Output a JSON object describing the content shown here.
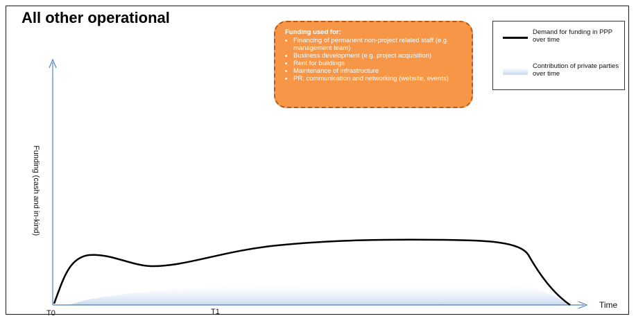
{
  "title": "All other operational",
  "callout": {
    "heading": "Funding used for:",
    "items": [
      "Financing of permanent non-project related staff (e.g. management team)",
      "Business development (e.g. project acquisition)",
      "Rent for buildings",
      "Maintenance of infrastructure",
      "PR, communication and networking (website, events)"
    ]
  },
  "legend": {
    "demand": "Demand for funding in PPP over time",
    "contribution": "Contribution of private parties over time"
  },
  "axes": {
    "y_label": "Funding (cash and in-kind)",
    "x_label": "Time",
    "t0": "T0",
    "t1": "T1"
  },
  "colors": {
    "demand_line": "#000000",
    "contribution_fill": "#c8d8f0",
    "axis": "#4f81bd",
    "callout_fill": "#f79646"
  }
}
